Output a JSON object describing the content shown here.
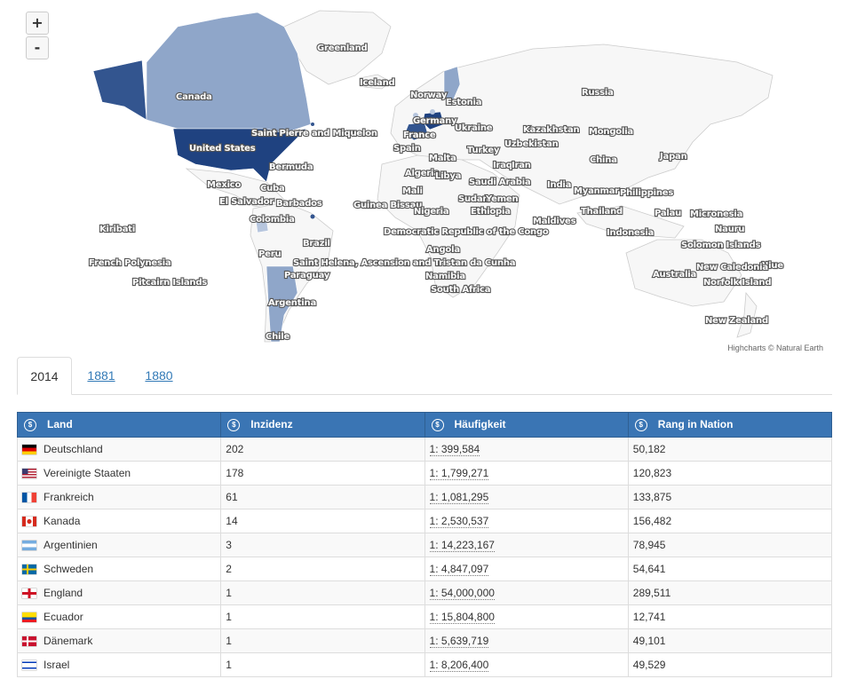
{
  "map": {
    "zoom_in_label": "+",
    "zoom_out_label": "-",
    "credits": "Highcharts © Natural Earth",
    "colors": {
      "empty": "#f7f7f7",
      "tier1": "#1f4280",
      "tier2": "#33558f",
      "tier3": "#8fa6c9",
      "tier4": "#b7c6de",
      "border": "#cccccc"
    },
    "country_labels": [
      "Greenland",
      "Iceland",
      "Norway",
      "Estonia",
      "Russia",
      "Canada",
      "Germany",
      "Ukraine",
      "Kazakhstan",
      "Mongolia",
      "France",
      "Uzbekistan",
      "United States",
      "Saint Pierre and Miquelon",
      "Spain",
      "Turkey",
      "Malta",
      "China",
      "Japan",
      "Bermuda",
      "Iraq",
      "Iran",
      "Algeria",
      "Libya",
      "Saudi Arabia",
      "India",
      "Mexico",
      "Cuba",
      "Mali",
      "Sudan",
      "Yemen",
      "Myanmar",
      "Philippines",
      "El Salvador",
      "Barbados",
      "Guinea Bissau",
      "Nigeria",
      "Ethiopia",
      "Thailand",
      "Palau",
      "Micronesia",
      "Colombia",
      "Maldives",
      "Kiribati",
      "Nauru",
      "Democratic Republic of the Congo",
      "Indonesia",
      "Solomon Islands",
      "Brazil",
      "Angola",
      "Peru",
      "French Polynesia",
      "Saint Helena, Ascension and Tristan da Cunha",
      "Niue",
      "New Caledonia",
      "Paraguay",
      "Namibia",
      "Australia",
      "Pitcairn Islands",
      "Norfolk Island",
      "South Africa",
      "Argentina",
      "New Zealand",
      "Chile"
    ]
  },
  "tabs": [
    {
      "label": "2014",
      "active": true
    },
    {
      "label": "1881",
      "active": false
    },
    {
      "label": "1880",
      "active": false
    }
  ],
  "table": {
    "sort_icon": "sort-icon",
    "headers": [
      "Land",
      "Inzidenz",
      "Häufigkeit",
      "Rang in Nation"
    ],
    "rows": [
      {
        "flag": "de",
        "land": "Deutschland",
        "inzidenz": "202",
        "haeufigkeit": "1: 399,584",
        "rang": "50,182"
      },
      {
        "flag": "us",
        "land": "Vereinigte Staaten",
        "inzidenz": "178",
        "haeufigkeit": "1: 1,799,271",
        "rang": "120,823"
      },
      {
        "flag": "fr",
        "land": "Frankreich",
        "inzidenz": "61",
        "haeufigkeit": "1: 1,081,295",
        "rang": "133,875"
      },
      {
        "flag": "ca",
        "land": "Kanada",
        "inzidenz": "14",
        "haeufigkeit": "1: 2,530,537",
        "rang": "156,482"
      },
      {
        "flag": "ar",
        "land": "Argentinien",
        "inzidenz": "3",
        "haeufigkeit": "1: 14,223,167",
        "rang": "78,945"
      },
      {
        "flag": "se",
        "land": "Schweden",
        "inzidenz": "2",
        "haeufigkeit": "1: 4,847,097",
        "rang": "54,641"
      },
      {
        "flag": "en",
        "land": "England",
        "inzidenz": "1",
        "haeufigkeit": "1: 54,000,000",
        "rang": "289,511"
      },
      {
        "flag": "ec",
        "land": "Ecuador",
        "inzidenz": "1",
        "haeufigkeit": "1: 15,804,800",
        "rang": "12,741"
      },
      {
        "flag": "dk",
        "land": "Dänemark",
        "inzidenz": "1",
        "haeufigkeit": "1: 5,639,719",
        "rang": "49,101"
      },
      {
        "flag": "il",
        "land": "Israel",
        "inzidenz": "1",
        "haeufigkeit": "1: 8,206,400",
        "rang": "49,529"
      }
    ]
  }
}
